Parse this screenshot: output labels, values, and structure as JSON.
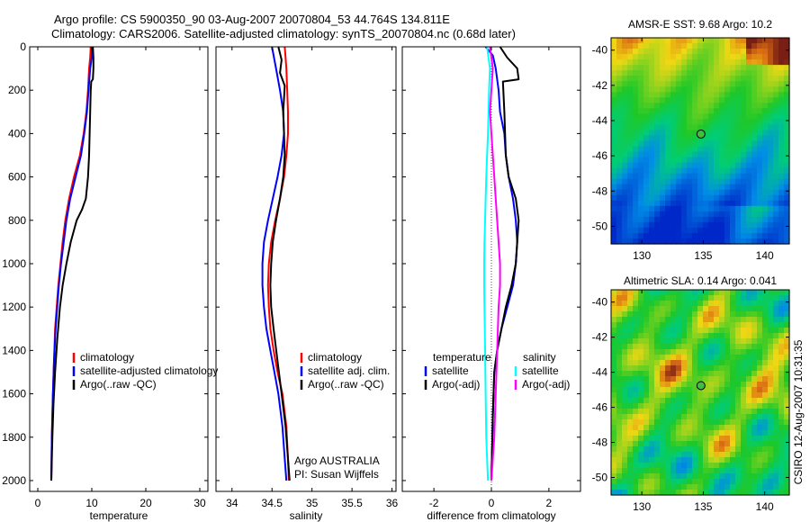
{
  "header": {
    "line1": "Argo profile: CS 5900350_90 03-Aug-2007 20070804_53 44.764S 134.811E",
    "line2": "Climatology: CARS2006. Satellite-adjusted climatology: synTS_20070804.nc (0.68d later)"
  },
  "side_text": "CSIRO 12-Aug-2007 10:31:35",
  "colors": {
    "climatology": "#ff0000",
    "satellite": "#0000ff",
    "argo": "#000000",
    "temp_diff_sat": "#00ffff",
    "sal_diff_sat": "#ff00ff",
    "argo_adj": "#000000"
  },
  "chart_data": [
    {
      "type": "line",
      "id": "temperature-profile",
      "xlabel": "temperature",
      "xlim": [
        -1.5,
        31.5
      ],
      "ylim": [
        2050,
        0
      ],
      "xticks": [
        0,
        10,
        20,
        30
      ],
      "yticks": [
        0,
        200,
        400,
        600,
        800,
        1000,
        1200,
        1400,
        1600,
        1800,
        2000
      ],
      "grid": false,
      "legend": [
        "climatology",
        "satellite-adjusted climatology",
        "Argo(..raw -QC)"
      ],
      "series": [
        {
          "name": "climatology",
          "color": "#ff0000",
          "x": [
            9.8,
            9.7,
            9.5,
            9.3,
            9.0,
            8.5,
            7.8,
            6.7,
            5.8,
            5.1,
            4.6,
            4.2,
            3.8,
            3.5,
            3.2,
            3.0,
            2.8,
            2.6,
            2.5
          ],
          "y": [
            0,
            50,
            100,
            200,
            300,
            400,
            500,
            600,
            700,
            800,
            900,
            1000,
            1100,
            1200,
            1300,
            1450,
            1600,
            1800,
            2000
          ]
        },
        {
          "name": "satellite-adjusted climatology",
          "color": "#0000ff",
          "x": [
            10.0,
            10.0,
            9.7,
            9.4,
            9.1,
            8.6,
            8.0,
            7.0,
            6.0,
            5.3,
            4.8,
            4.3,
            3.9,
            3.6,
            3.3,
            3.0,
            2.8,
            2.6,
            2.5
          ],
          "y": [
            0,
            50,
            100,
            200,
            300,
            400,
            500,
            600,
            700,
            800,
            900,
            1000,
            1100,
            1200,
            1300,
            1450,
            1600,
            1800,
            2000
          ]
        },
        {
          "name": "Argo(..raw -QC)",
          "color": "#000000",
          "x": [
            10.2,
            10.3,
            10.3,
            10.2,
            9.9,
            9.8,
            9.7,
            9.6,
            9.5,
            9.3,
            8.9,
            8.2,
            7.2,
            6.1,
            5.3,
            4.6,
            4.1,
            3.6,
            3.2,
            2.9,
            2.7,
            2.5
          ],
          "y": [
            0,
            50,
            100,
            150,
            160,
            200,
            300,
            400,
            500,
            600,
            700,
            750,
            800,
            900,
            1000,
            1100,
            1200,
            1350,
            1500,
            1650,
            1800,
            2000
          ]
        }
      ]
    },
    {
      "type": "line",
      "id": "salinity-profile",
      "xlabel": "salinity",
      "xlim": [
        33.8,
        36.05
      ],
      "ylim": [
        2050,
        0
      ],
      "xticks": [
        34,
        34.5,
        35,
        35.5,
        36
      ],
      "yticks": [
        0,
        200,
        400,
        600,
        800,
        1000,
        1200,
        1400,
        1600,
        1800,
        2000
      ],
      "grid": false,
      "legend": [
        "climatology",
        "satellite adj. clim.",
        "Argo(..raw -QC)"
      ],
      "annotations": [
        "Argo AUSTRALIA",
        "PI: Susan Wijffels"
      ],
      "series": [
        {
          "name": "climatology",
          "color": "#ff0000",
          "x": [
            34.66,
            34.68,
            34.69,
            34.7,
            34.7,
            34.68,
            34.65,
            34.6,
            34.54,
            34.49,
            34.46,
            34.45,
            34.46,
            34.48,
            34.52,
            34.57,
            34.63,
            34.68,
            34.7,
            34.71
          ],
          "y": [
            0,
            100,
            200,
            300,
            400,
            500,
            600,
            700,
            800,
            900,
            1000,
            1100,
            1200,
            1300,
            1400,
            1500,
            1600,
            1750,
            1900,
            2000
          ]
        },
        {
          "name": "satellite adj. clim.",
          "color": "#0000ff",
          "x": [
            34.5,
            34.55,
            34.6,
            34.64,
            34.65,
            34.62,
            34.57,
            34.51,
            34.45,
            34.4,
            34.38,
            34.38,
            34.4,
            34.43,
            34.48,
            34.53,
            34.58,
            34.63,
            34.66,
            34.68
          ],
          "y": [
            0,
            100,
            200,
            300,
            400,
            500,
            600,
            700,
            800,
            900,
            1000,
            1100,
            1200,
            1300,
            1400,
            1500,
            1600,
            1750,
            1900,
            2000
          ]
        },
        {
          "name": "Argo(..raw -QC)",
          "color": "#000000",
          "x": [
            34.58,
            34.62,
            34.6,
            34.66,
            34.64,
            34.65,
            34.66,
            34.64,
            34.6,
            34.55,
            34.51,
            34.49,
            34.48,
            34.49,
            34.52,
            34.57,
            34.62,
            34.67,
            34.7,
            34.72
          ],
          "y": [
            0,
            60,
            120,
            180,
            300,
            400,
            500,
            600,
            700,
            800,
            900,
            1000,
            1100,
            1200,
            1300,
            1450,
            1600,
            1750,
            1900,
            2000
          ]
        }
      ]
    },
    {
      "type": "line",
      "id": "difference-profile",
      "xlabel": "difference from climatology",
      "xlim": [
        -3.1,
        3.1
      ],
      "ylim": [
        2050,
        0
      ],
      "xticks": [
        -2,
        0,
        2
      ],
      "yticks": [
        0,
        200,
        400,
        600,
        800,
        1000,
        1200,
        1400,
        1600,
        1800,
        2000
      ],
      "grid": false,
      "legend": [
        "temperature",
        "satellite",
        "Argo(-adj)",
        "salinity",
        "satellite",
        "Argo(-adj)"
      ],
      "series": [
        {
          "name": "temperature satellite",
          "color": "#0000ff",
          "x": [
            -0.2,
            0.05,
            0.15,
            0.25,
            0.3,
            0.45,
            0.5,
            0.6,
            0.75,
            0.85,
            0.9,
            0.85,
            0.75,
            0.55,
            0.35,
            0.2,
            0.1,
            0.05,
            0.0
          ],
          "y": [
            0,
            40,
            100,
            200,
            300,
            400,
            500,
            600,
            700,
            800,
            900,
            1000,
            1100,
            1200,
            1300,
            1400,
            1500,
            1700,
            2000
          ]
        },
        {
          "name": "temperature Argo(-adj)",
          "color": "#000000",
          "x": [
            0.3,
            0.55,
            0.9,
            0.95,
            0.4,
            0.45,
            0.5,
            0.6,
            0.85,
            0.95,
            0.9,
            0.85,
            0.7,
            0.5,
            0.35,
            0.2,
            0.1,
            0.05,
            0.0
          ],
          "y": [
            0,
            50,
            100,
            150,
            160,
            300,
            500,
            600,
            700,
            800,
            900,
            1000,
            1100,
            1200,
            1300,
            1400,
            1500,
            1700,
            2000
          ]
        },
        {
          "name": "salinity satellite",
          "color": "#00ffff",
          "x": [
            -0.15,
            -0.05,
            -0.08,
            -0.1,
            -0.12,
            -0.15,
            -0.18,
            -0.2,
            -0.22,
            -0.24,
            -0.25,
            -0.25,
            -0.24,
            -0.22,
            -0.2,
            -0.18,
            -0.15,
            -0.12
          ],
          "y": [
            0,
            100,
            200,
            300,
            400,
            500,
            600,
            700,
            800,
            900,
            1000,
            1100,
            1200,
            1400,
            1600,
            1800,
            1900,
            2000
          ]
        },
        {
          "name": "salinity Argo(-adj)",
          "color": "#ff00ff",
          "x": [
            -0.05,
            0.05,
            0.0,
            -0.05,
            0.0,
            0.05,
            0.1,
            0.15,
            0.2,
            0.25,
            0.3,
            0.3,
            0.25,
            0.2,
            0.15,
            0.1,
            0.05,
            0.0
          ],
          "y": [
            0,
            100,
            200,
            300,
            400,
            500,
            600,
            700,
            800,
            900,
            1000,
            1100,
            1200,
            1400,
            1600,
            1800,
            1900,
            2000
          ]
        }
      ]
    },
    {
      "type": "heatmap",
      "id": "sst-map",
      "title": "AMSR-E SST: 9.68  Argo: 10.2",
      "xlim": [
        127.5,
        142
      ],
      "ylim": [
        -51,
        -39.3
      ],
      "xticks": [
        130,
        135,
        140
      ],
      "yticks": [
        -40,
        -42,
        -44,
        -46,
        -48,
        -50
      ],
      "marker": {
        "lon": 134.811,
        "lat": -44.764
      }
    },
    {
      "type": "heatmap",
      "id": "sla-map",
      "title": "Altimetric SLA: 0.14  Argo: 0.041",
      "xlim": [
        127.5,
        142
      ],
      "ylim": [
        -51,
        -39.3
      ],
      "xticks": [
        130,
        135,
        140
      ],
      "yticks": [
        -40,
        -42,
        -44,
        -46,
        -48,
        -50
      ],
      "marker": {
        "lon": 134.811,
        "lat": -44.764
      }
    }
  ]
}
